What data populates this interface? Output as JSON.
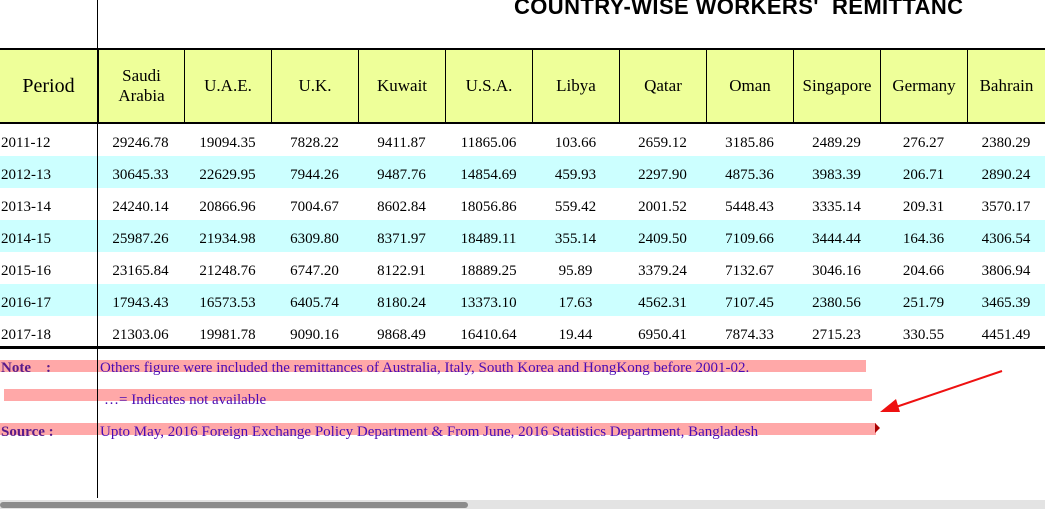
{
  "title": "COUNTRY-WISE WORKERS'  REMITTANC",
  "columns": [
    {
      "label": "Period"
    },
    {
      "label": "Saudi\nArabia"
    },
    {
      "label": "U.A.E."
    },
    {
      "label": "U.K."
    },
    {
      "label": "Kuwait"
    },
    {
      "label": "U.S.A."
    },
    {
      "label": "Libya"
    },
    {
      "label": "Qatar"
    },
    {
      "label": "Oman"
    },
    {
      "label": "Singapore"
    },
    {
      "label": "Germany"
    },
    {
      "label": "Bahrain"
    }
  ],
  "rows": [
    {
      "highlight": false,
      "cells": [
        "2011-12",
        "29246.78",
        "19094.35",
        "7828.22",
        "9411.87",
        "11865.06",
        "103.66",
        "2659.12",
        "3185.86",
        "2489.29",
        "276.27",
        "2380.29"
      ]
    },
    {
      "highlight": true,
      "cells": [
        "2012-13",
        "30645.33",
        "22629.95",
        "7944.26",
        "9487.76",
        "14854.69",
        "459.93",
        "2297.90",
        "4875.36",
        "3983.39",
        "206.71",
        "2890.24"
      ]
    },
    {
      "highlight": false,
      "cells": [
        "2013-14",
        "24240.14",
        "20866.96",
        "7004.67",
        "8602.84",
        "18056.86",
        "559.42",
        "2001.52",
        "5448.43",
        "3335.14",
        "209.31",
        "3570.17"
      ]
    },
    {
      "highlight": true,
      "cells": [
        "2014-15",
        "25987.26",
        "21934.98",
        "6309.80",
        "8371.97",
        "18489.11",
        "355.14",
        "2409.50",
        "7109.66",
        "3444.44",
        "164.36",
        "4306.54"
      ]
    },
    {
      "highlight": false,
      "cells": [
        "2015-16",
        "23165.84",
        "21248.76",
        "6747.20",
        "8122.91",
        "18889.25",
        "95.89",
        "3379.24",
        "7132.67",
        "3046.16",
        "204.66",
        "3806.94"
      ]
    },
    {
      "highlight": true,
      "cells": [
        "2016-17",
        "17943.43",
        "16573.53",
        "6405.74",
        "8180.24",
        "13373.10",
        "17.63",
        "4562.31",
        "7107.45",
        "2380.56",
        "251.79",
        "3465.39"
      ]
    },
    {
      "highlight": false,
      "cells": [
        "2017-18",
        "21303.06",
        "19981.78",
        "9090.16",
        "9868.49",
        "16410.64",
        "19.44",
        "6950.41",
        "7874.33",
        "2715.23",
        "330.55",
        "4451.49"
      ]
    }
  ],
  "notes": {
    "note_label": "Note    :",
    "note_text": "Others figure were included the remittances of Australia, Italy, South Korea and HongKong before 2001-02.",
    "na_text": "…= Indicates not available",
    "source_label": "Source :",
    "source_text": "Upto May, 2016 Foreign Exchange Policy Department & From June, 2016 Statistics Department, Bangladesh"
  },
  "colors": {
    "header_bg": "#eeff99",
    "row_highlight": "#ccffff",
    "note_highlight": "#ffa8a8",
    "arrow": "#ee1111"
  }
}
